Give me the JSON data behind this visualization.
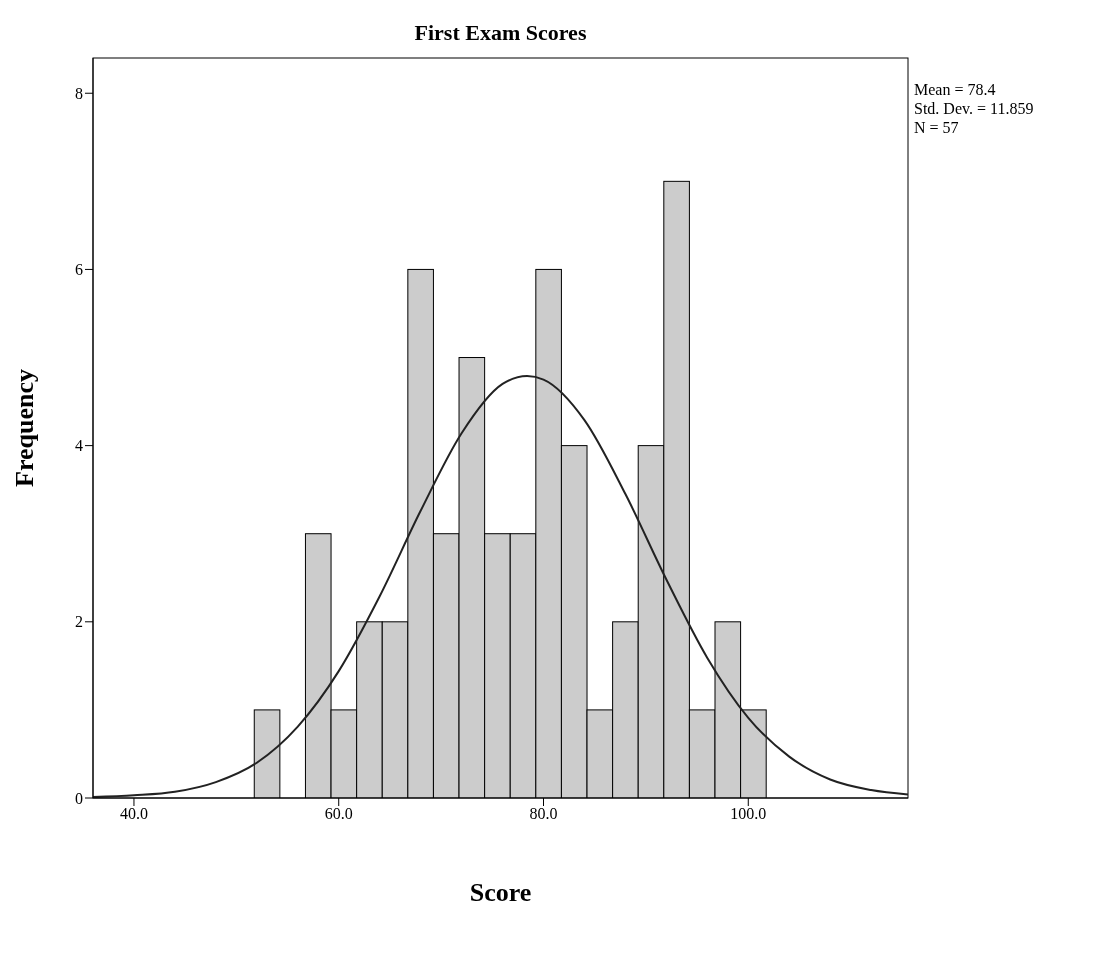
{
  "chart_data": {
    "type": "histogram",
    "title": "First Exam Scores",
    "xlabel": "Score",
    "ylabel": "Frequency",
    "bins": [
      51.75,
      54.25,
      56.75,
      59.25,
      61.75,
      64.25,
      66.75,
      69.25,
      71.75,
      74.25,
      76.75,
      79.25,
      81.75,
      84.25,
      86.75,
      89.25,
      91.75,
      94.25,
      96.75,
      99.25,
      101.75
    ],
    "values": [
      1,
      0,
      3,
      1,
      2,
      2,
      6,
      3,
      5,
      3,
      3,
      6,
      4,
      1,
      2,
      4,
      7,
      1,
      2,
      1
    ],
    "color": "#cccccc",
    "series": [
      {
        "type": "line",
        "color": "#222222",
        "x": [
          36,
          40,
          44,
          48,
          52,
          56,
          60,
          64,
          68,
          72,
          76,
          78.4,
          80,
          84,
          88,
          92,
          96,
          100,
          104,
          108,
          112,
          115.6
        ],
        "values": [
          0.01,
          0.03,
          0.07,
          0.18,
          0.4,
          0.81,
          1.44,
          2.29,
          3.26,
          4.14,
          4.7,
          4.79,
          4.75,
          4.29,
          3.45,
          2.48,
          1.59,
          0.91,
          0.47,
          0.21,
          0.09,
          0.04
        ]
      }
    ],
    "xlim": [
      36,
      115.6
    ],
    "xticks": [
      {
        "value": 40,
        "label": "40.0"
      },
      {
        "value": 60,
        "label": "60.0"
      },
      {
        "value": 80,
        "label": "80.0"
      },
      {
        "value": 100,
        "label": "100.0"
      }
    ],
    "ylim": [
      0,
      8.4
    ],
    "yticks": [
      0,
      2,
      4,
      6,
      8
    ],
    "annotations": [
      "Mean = 78.4",
      "Std. Dev. = 11.859",
      "N = 57"
    ]
  }
}
